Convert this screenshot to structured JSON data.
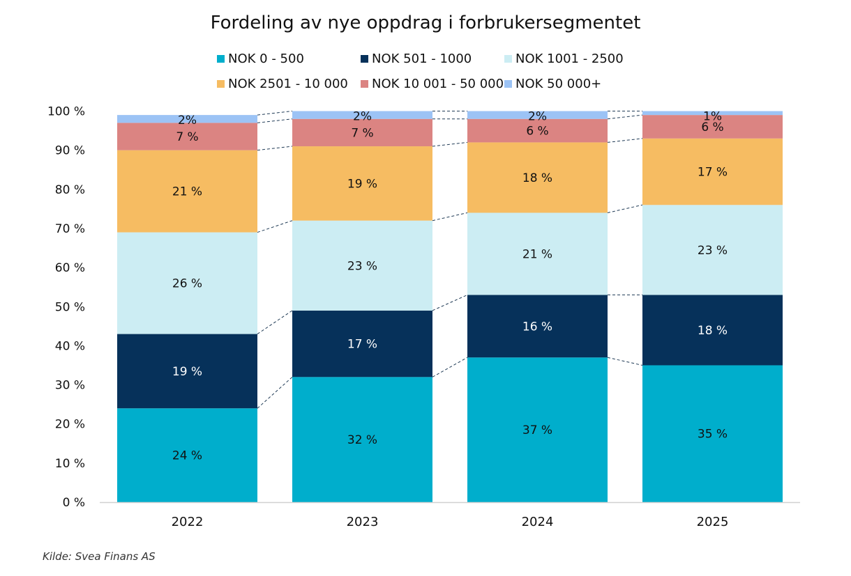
{
  "chart_data": {
    "type": "bar",
    "stacked": true,
    "title": "Fordeling av nye oppdrag i forbrukersegmentet",
    "xlabel": "",
    "ylabel": "",
    "ylim": [
      0,
      100
    ],
    "yticks": [
      0,
      10,
      20,
      30,
      40,
      50,
      60,
      70,
      80,
      90,
      100
    ],
    "ytick_labels": [
      "0 %",
      "10 %",
      "20 %",
      "30 %",
      "40 %",
      "50 %",
      "60 %",
      "70 %",
      "80 %",
      "90 %",
      "100 %"
    ],
    "grid": false,
    "legend_position": "top",
    "categories": [
      "2022",
      "2023",
      "2024",
      "2025"
    ],
    "series": [
      {
        "name": "NOK 0 - 500",
        "color": "#00AECC",
        "values": [
          24,
          32,
          37,
          35
        ],
        "labels": [
          "24 %",
          "32 %",
          "37 %",
          "35 %"
        ]
      },
      {
        "name": "NOK 501 - 1000",
        "color": "#06315A",
        "values": [
          19,
          17,
          16,
          18
        ],
        "labels": [
          "19 %",
          "17 %",
          "16 %",
          "18 %"
        ]
      },
      {
        "name": "NOK 1001 - 2500",
        "color": "#CCEDF3",
        "values": [
          26,
          23,
          21,
          23
        ],
        "labels": [
          "26 %",
          "23 %",
          "21 %",
          "23 %"
        ]
      },
      {
        "name": "NOK 2501 - 10 000",
        "color": "#F6BC62",
        "values": [
          21,
          19,
          18,
          17
        ],
        "labels": [
          "21 %",
          "19 %",
          "18 %",
          "17 %"
        ]
      },
      {
        "name": "NOK 10 001 - 50 000",
        "color": "#DB8482",
        "values": [
          7,
          7,
          6,
          6
        ],
        "labels": [
          "7 %",
          "7 %",
          "6 %",
          "6 %"
        ]
      },
      {
        "name": "NOK 50 000+",
        "color": "#9CC3F5",
        "values": [
          2,
          2,
          2,
          1
        ],
        "labels": [
          "2%",
          "2%",
          "2%",
          "1%"
        ]
      }
    ],
    "series_lines": "dashed"
  },
  "source": "Kilde: Svea Finans AS"
}
